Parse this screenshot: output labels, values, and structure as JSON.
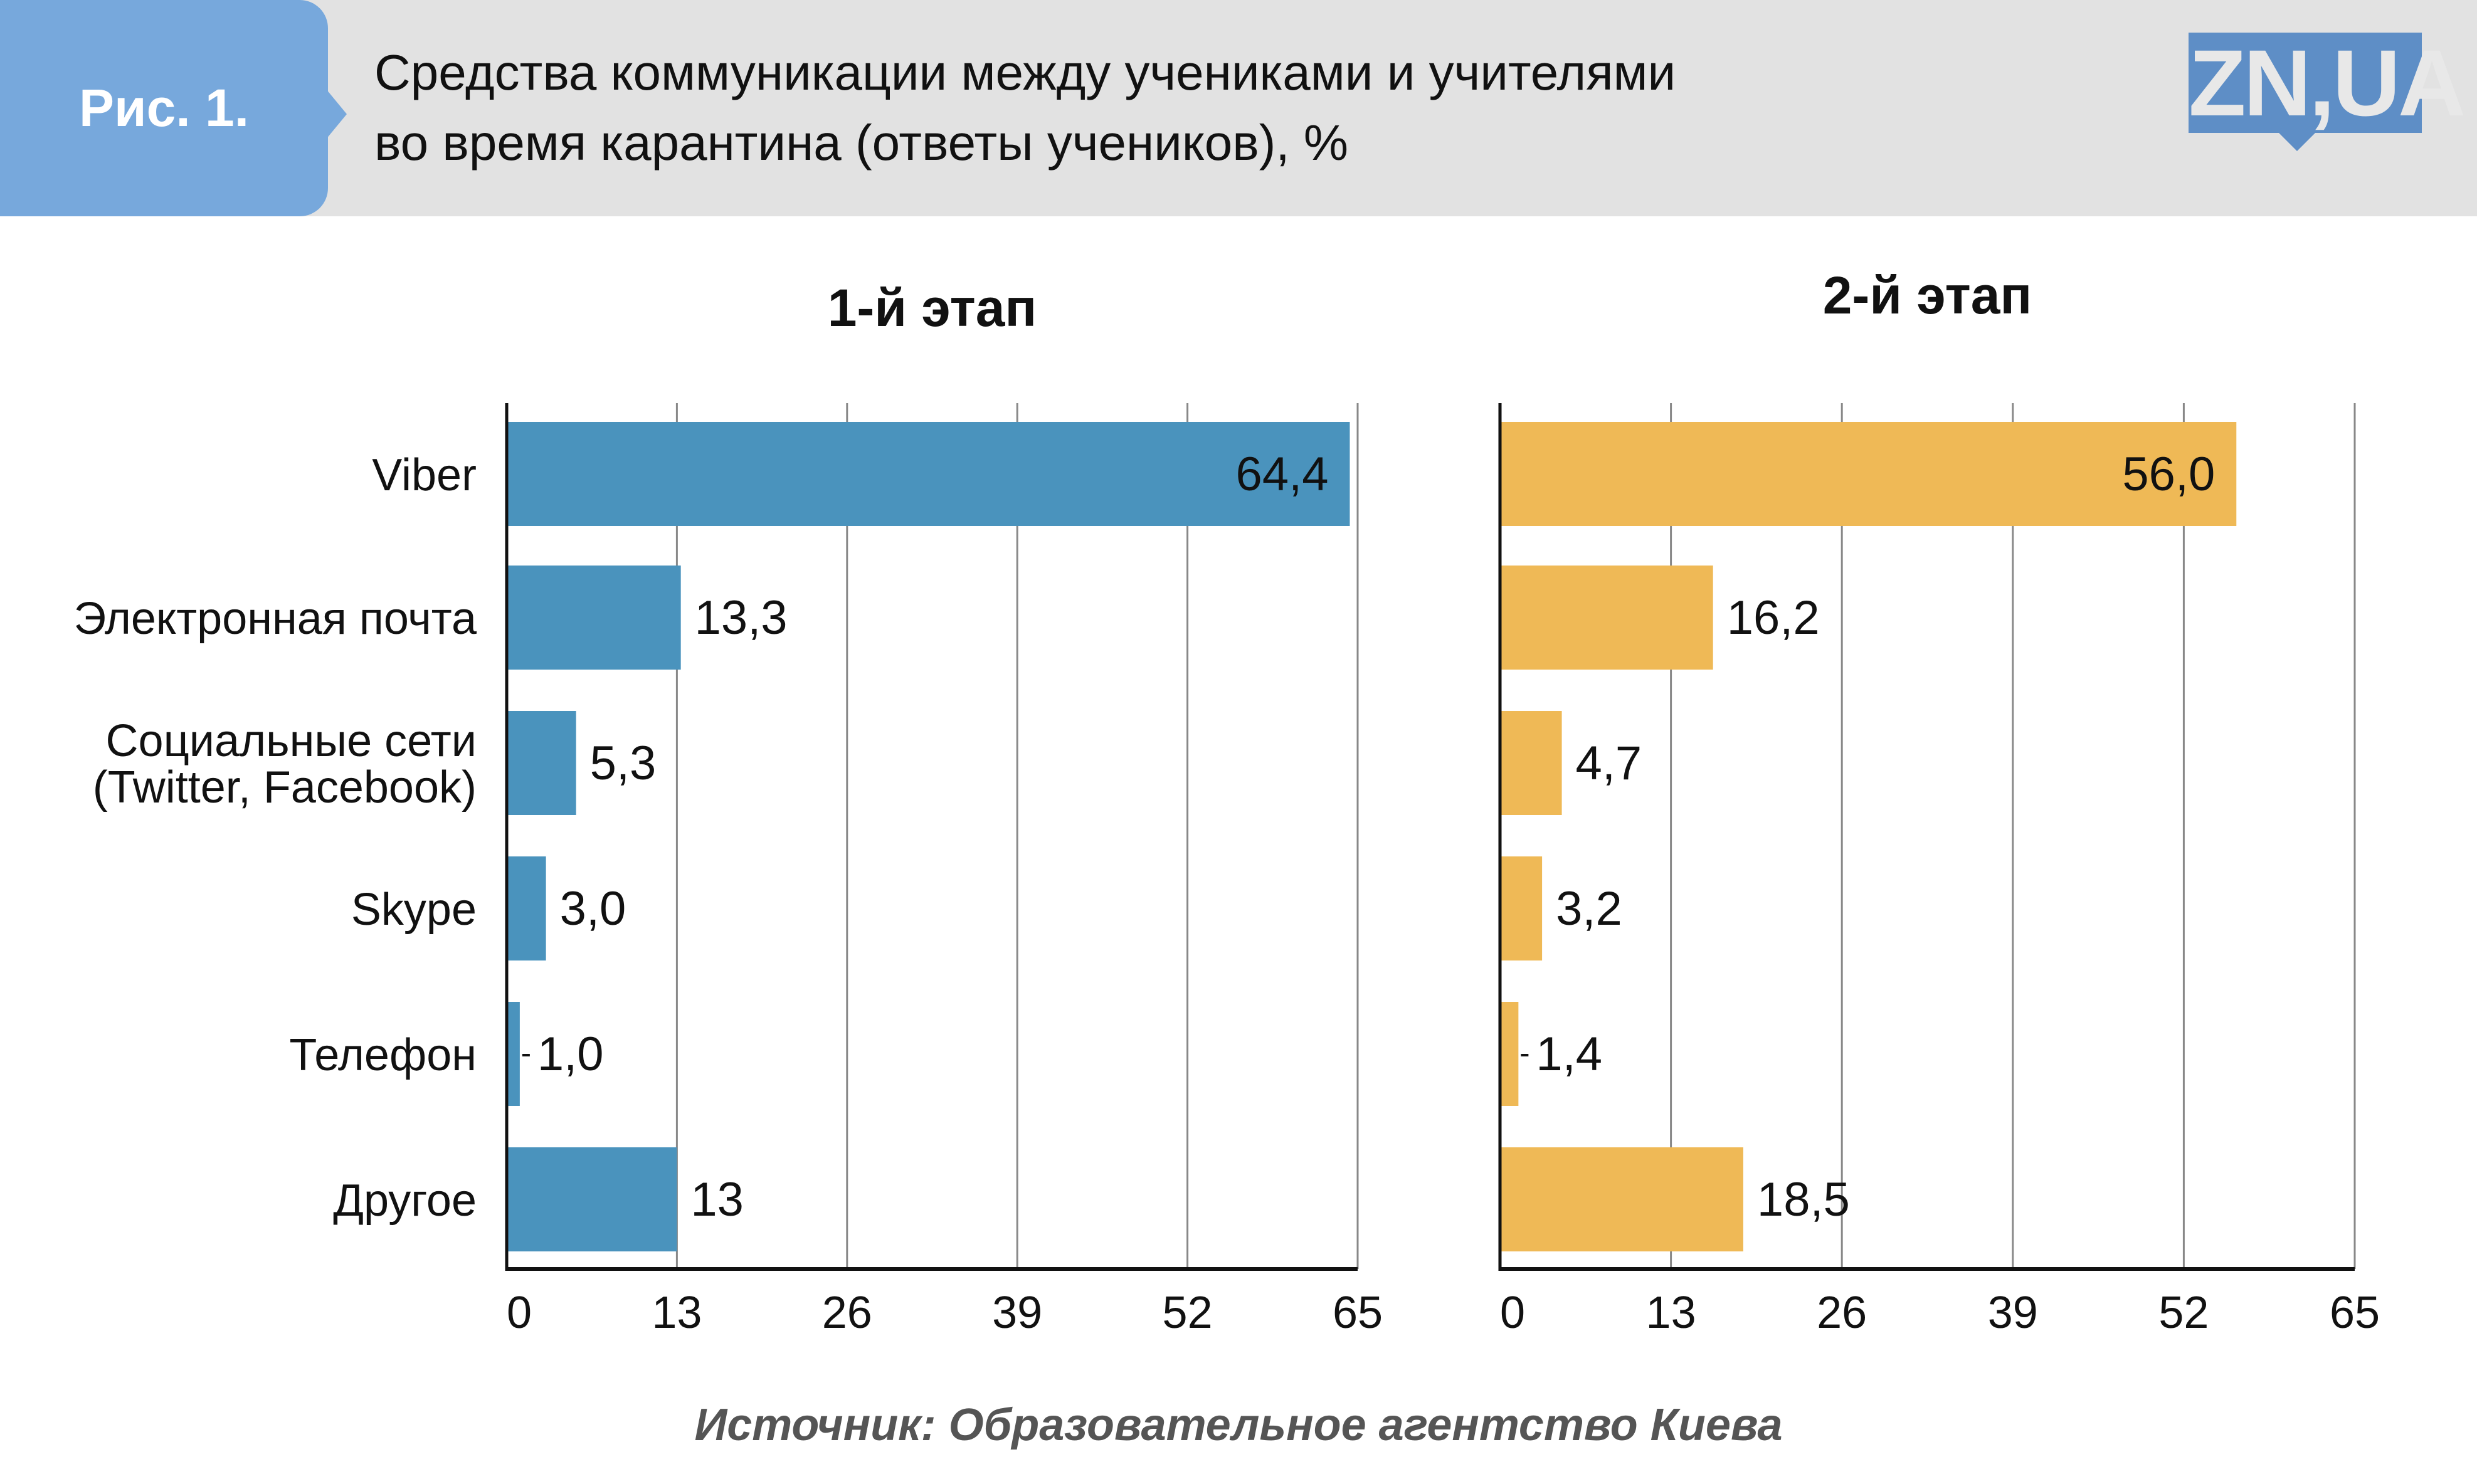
{
  "header": {
    "figure_label": "Рис. 1.",
    "title_line1": "Средства коммуникации между учениками и учителями",
    "title_line2": "во время карантина (ответы учеников), %",
    "logo_text": "ZN,UA"
  },
  "chart_data": [
    {
      "type": "bar",
      "orientation": "horizontal",
      "title": "1-й этап",
      "categories": [
        "Viber",
        "Электронная почта",
        "Социальные сети\n(Twitter, Facebook)",
        "Skype",
        "Телефон",
        "Другое"
      ],
      "values": [
        64.4,
        13.3,
        5.3,
        3.0,
        1.0,
        13
      ],
      "value_labels": [
        "64,4",
        "13,3",
        "5,3",
        "3,0",
        "1,0",
        "13"
      ],
      "xlim": [
        0,
        65
      ],
      "xticks": [
        "0",
        "13",
        "26",
        "39",
        "52",
        "65"
      ],
      "tick_values": [
        0,
        13,
        26,
        39,
        52,
        65
      ],
      "grid": true,
      "color": "#4a93bd"
    },
    {
      "type": "bar",
      "orientation": "horizontal",
      "title": "2-й этап",
      "categories": [
        "Viber",
        "Электронная почта",
        "Социальные сети\n(Twitter, Facebook)",
        "Skype",
        "Телефон",
        "Другое"
      ],
      "values": [
        56.0,
        16.2,
        4.7,
        3.2,
        1.4,
        18.5
      ],
      "value_labels": [
        "56,0",
        "16,2",
        "4,7",
        "3,2",
        "1,4",
        "18,5"
      ],
      "xlim": [
        0,
        65
      ],
      "xticks": [
        "0",
        "13",
        "26",
        "39",
        "52",
        "65"
      ],
      "tick_values": [
        0,
        13,
        26,
        39,
        52,
        65
      ],
      "grid": true,
      "color": "#efb956"
    }
  ],
  "source": "Источник: Образовательное агентство Киева"
}
